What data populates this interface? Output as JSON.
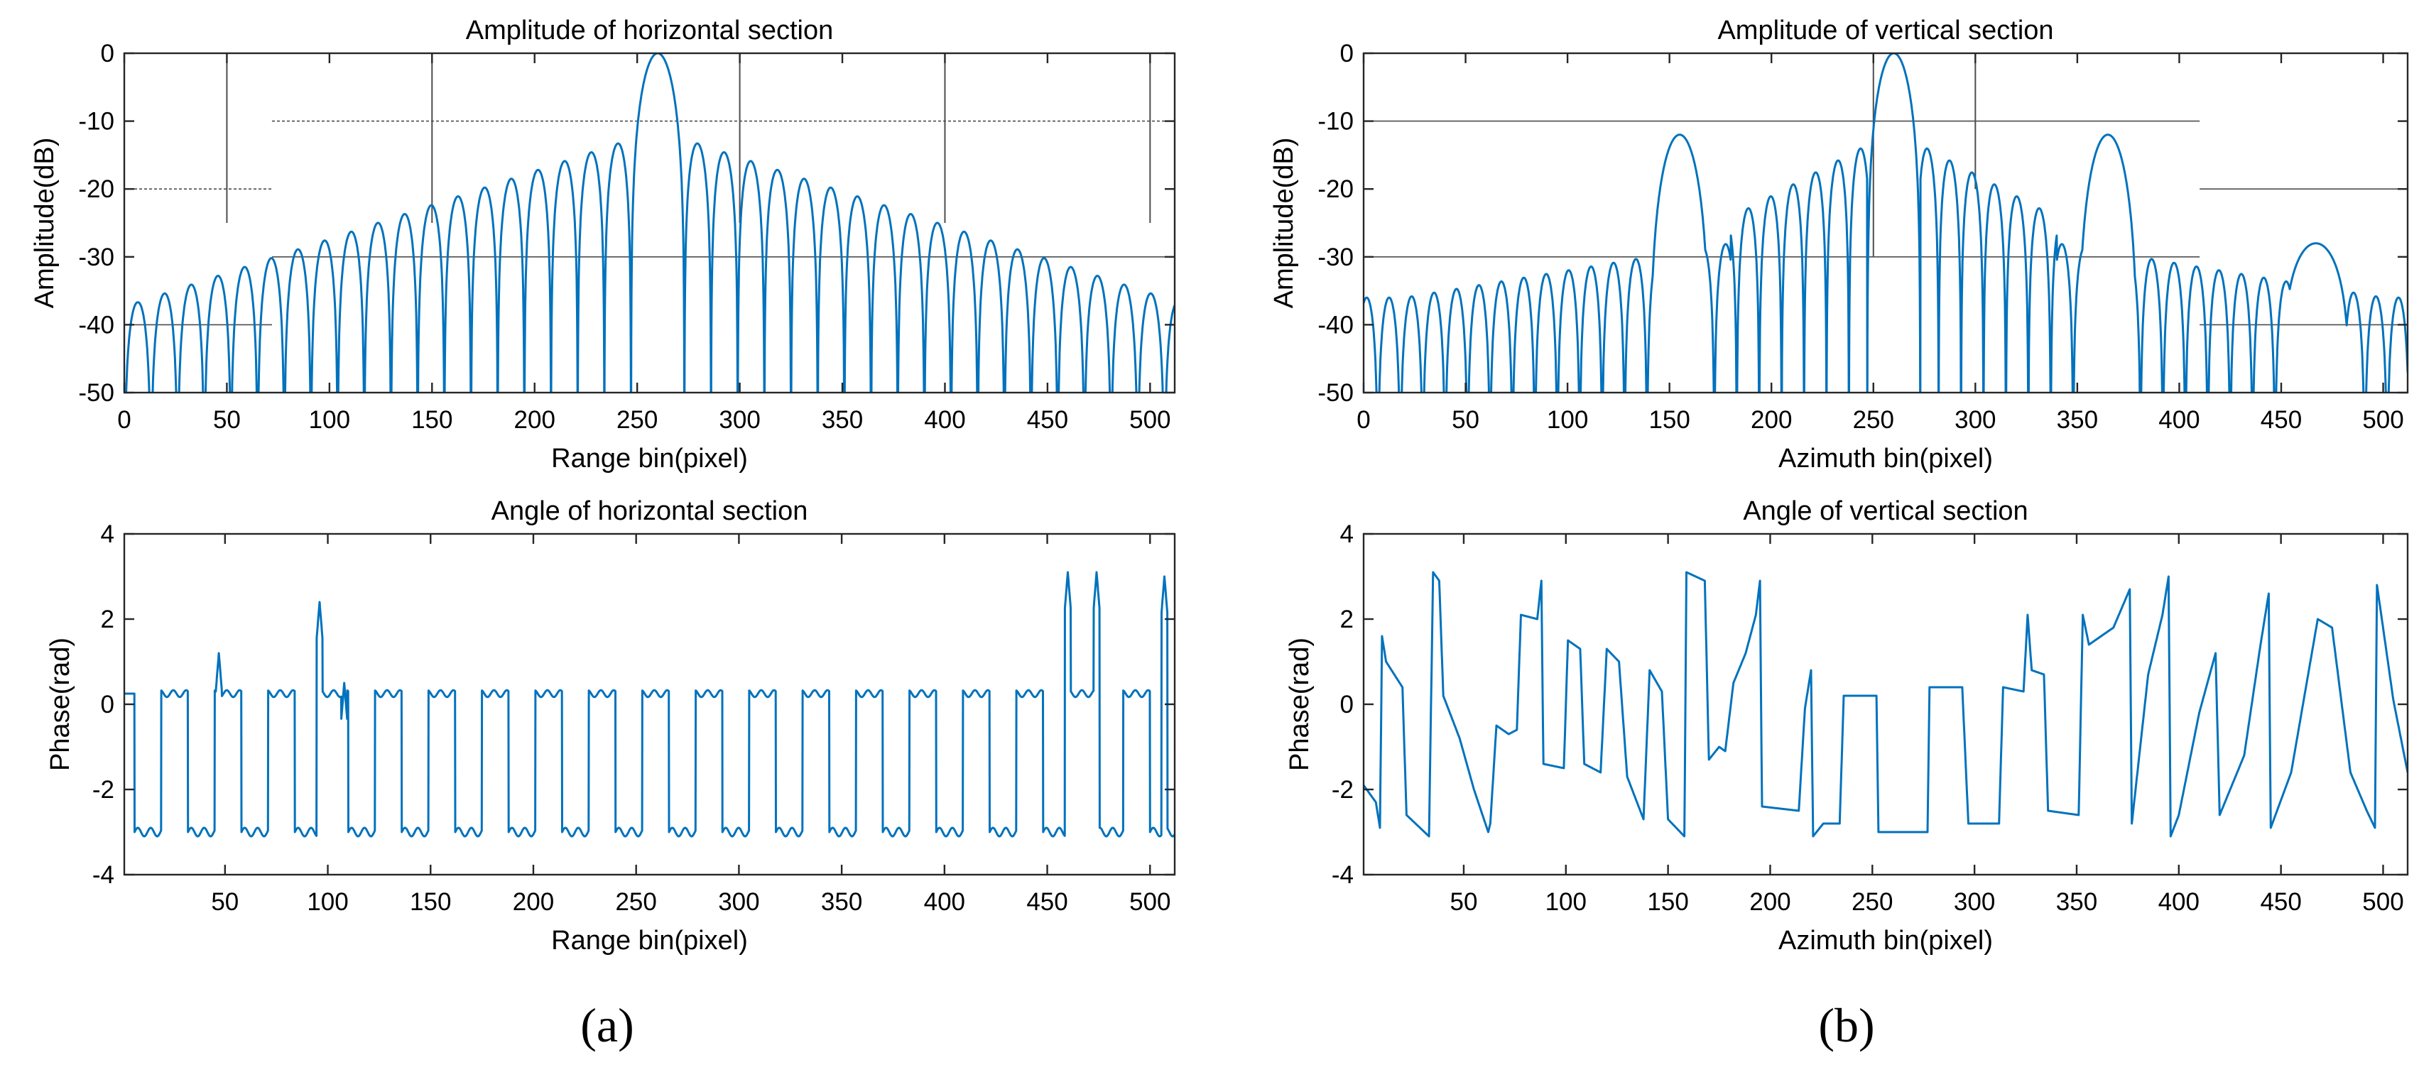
{
  "colors": {
    "line": "#0072BD",
    "axis": "#262626",
    "text": "#000000",
    "grid": "#4d4d4d"
  },
  "panel_labels": [
    "(a)",
    "(b)"
  ],
  "chart_data": [
    {
      "type": "line",
      "title": "Amplitude of horizontal section",
      "xlabel": "Range bin(pixel)",
      "ylabel": "Amplitude(dB)",
      "xlim": [
        0,
        512
      ],
      "ylim": [
        -50,
        0
      ],
      "xticks": [
        0,
        50,
        100,
        150,
        200,
        250,
        300,
        350,
        400,
        450,
        500
      ],
      "yticks": [
        0,
        -10,
        -20,
        -30,
        -40,
        -50
      ],
      "signal": "sinc_range",
      "series": [
        {
          "name": "amplitude",
          "peak_x": 260,
          "peak_y": 0,
          "first_sidelobe_db": -13.3,
          "sidelobe_period": 13,
          "edge_level_db": -36
        }
      ],
      "annotations": {
        "h_lines": [
          {
            "y": -20,
            "x": [
              0,
              72
            ]
          },
          {
            "y": -10,
            "x": [
              72,
              512
            ]
          },
          {
            "y": -30,
            "x": [
              72,
              512
            ]
          },
          {
            "y": -40,
            "x": [
              0,
              72
            ]
          }
        ],
        "v_lines": [
          {
            "x": 50,
            "y": [
              -25,
              0
            ]
          },
          {
            "x": 150,
            "y": [
              -25,
              0
            ]
          },
          {
            "x": 300,
            "y": [
              -25,
              0
            ]
          },
          {
            "x": 400,
            "y": [
              -25,
              0
            ]
          },
          {
            "x": 500,
            "y": [
              -25,
              0
            ]
          }
        ]
      }
    },
    {
      "type": "line",
      "title": "Amplitude of vertical section",
      "xlabel": "Azimuth bin(pixel)",
      "ylabel": "Amplitude(dB)",
      "xlim": [
        0,
        512
      ],
      "ylim": [
        -50,
        0
      ],
      "xticks": [
        0,
        50,
        100,
        150,
        200,
        250,
        300,
        350,
        400,
        450,
        500
      ],
      "yticks": [
        0,
        -10,
        -20,
        -30,
        -40,
        -50
      ],
      "signal": "sinc_azimuth",
      "series": [
        {
          "name": "amplitude",
          "peak_x": 260,
          "peak_y": 0,
          "secondary_peaks": [
            {
              "x": 155,
              "y": -12
            },
            {
              "x": 365,
              "y": -12
            }
          ],
          "tail_peak": {
            "x": 467,
            "y": -28
          }
        }
      ],
      "annotations": {
        "h_lines": [
          {
            "y": -10,
            "x": [
              0,
              410
            ]
          },
          {
            "y": -30,
            "x": [
              0,
              410
            ]
          },
          {
            "y": -20,
            "x": [
              410,
              512
            ]
          },
          {
            "y": -40,
            "x": [
              410,
              512
            ]
          }
        ],
        "v_lines": [
          {
            "x": 250,
            "y": [
              -30,
              0
            ]
          },
          {
            "x": 300,
            "y": [
              -20,
              0
            ]
          }
        ]
      }
    },
    {
      "type": "line",
      "title": "Angle of horizontal section",
      "xlabel": "Range bin(pixel)",
      "ylabel": "Phase(rad)",
      "xlim": [
        1,
        512
      ],
      "ylim": [
        -4,
        4
      ],
      "xticks": [
        50,
        100,
        150,
        200,
        250,
        300,
        350,
        400,
        450,
        500
      ],
      "yticks": [
        4,
        2,
        0,
        -2,
        -4
      ],
      "signal": "phase_range",
      "series": [
        {
          "name": "phase",
          "high_level": 0.25,
          "low_level": -3.0,
          "period": 26,
          "spikes": [
            {
              "x": 47,
              "y": 1.2
            },
            {
              "x": 96,
              "y": 2.4
            },
            {
              "x": 108,
              "y": 0.5
            },
            {
              "x": 460,
              "y": 3.1
            },
            {
              "x": 474,
              "y": 3.1
            },
            {
              "x": 507,
              "y": 3.0
            }
          ]
        }
      ]
    },
    {
      "type": "line",
      "title": "Angle of vertical section",
      "xlabel": "Azimuth bin(pixel)",
      "ylabel": "Phase(rad)",
      "xlim": [
        1,
        512
      ],
      "ylim": [
        -4,
        4
      ],
      "xticks": [
        50,
        100,
        150,
        200,
        250,
        300,
        350,
        400,
        450,
        500
      ],
      "yticks": [
        4,
        2,
        0,
        -2,
        -4
      ],
      "signal": "phase_azimuth",
      "series": [
        {
          "name": "phase",
          "breakpoints": [
            [
              1,
              -1.9
            ],
            [
              7,
              -2.3
            ],
            [
              9,
              -2.9
            ],
            [
              10,
              1.6
            ],
            [
              12,
              1.0
            ],
            [
              20,
              0.4
            ],
            [
              22,
              -2.6
            ],
            [
              33,
              -3.1
            ],
            [
              35,
              3.1
            ],
            [
              38,
              2.9
            ],
            [
              40,
              0.2
            ],
            [
              48,
              -0.8
            ],
            [
              55,
              -2.0
            ],
            [
              62,
              -3.0
            ],
            [
              63,
              -2.8
            ],
            [
              66,
              -0.5
            ],
            [
              72,
              -0.7
            ],
            [
              76,
              -0.6
            ],
            [
              78,
              2.1
            ],
            [
              86,
              2.0
            ],
            [
              88,
              2.9
            ],
            [
              89,
              -1.4
            ],
            [
              99,
              -1.5
            ],
            [
              101,
              1.5
            ],
            [
              107,
              1.3
            ],
            [
              109,
              -1.4
            ],
            [
              117,
              -1.6
            ],
            [
              120,
              1.3
            ],
            [
              126,
              1.0
            ],
            [
              130,
              -1.7
            ],
            [
              138,
              -2.7
            ],
            [
              141,
              0.8
            ],
            [
              147,
              0.3
            ],
            [
              150,
              -2.7
            ],
            [
              158,
              -3.1
            ],
            [
              159,
              3.1
            ],
            [
              168,
              2.9
            ],
            [
              170,
              -1.3
            ],
            [
              175,
              -1.0
            ],
            [
              178,
              -1.1
            ],
            [
              182,
              0.5
            ],
            [
              188,
              1.2
            ],
            [
              193,
              2.1
            ],
            [
              195,
              2.9
            ],
            [
              196,
              -2.4
            ],
            [
              214,
              -2.5
            ],
            [
              217,
              -0.1
            ],
            [
              220,
              0.8
            ],
            [
              221,
              -3.1
            ],
            [
              226,
              -2.8
            ],
            [
              234,
              -2.8
            ],
            [
              236,
              0.2
            ],
            [
              252,
              0.2
            ],
            [
              253,
              -3.0
            ],
            [
              277,
              -3.0
            ],
            [
              278,
              0.4
            ],
            [
              294,
              0.4
            ],
            [
              297,
              -2.8
            ],
            [
              312,
              -2.8
            ],
            [
              314,
              0.4
            ],
            [
              324,
              0.3
            ],
            [
              326,
              2.1
            ],
            [
              328,
              0.8
            ],
            [
              334,
              0.7
            ],
            [
              336,
              -2.5
            ],
            [
              351,
              -2.6
            ],
            [
              353,
              2.1
            ],
            [
              356,
              1.4
            ],
            [
              368,
              1.8
            ],
            [
              376,
              2.7
            ],
            [
              377,
              -2.8
            ],
            [
              385,
              0.7
            ],
            [
              392,
              2.1
            ],
            [
              395,
              3.0
            ],
            [
              396,
              -3.1
            ],
            [
              400,
              -2.6
            ],
            [
              410,
              -0.2
            ],
            [
              418,
              1.2
            ],
            [
              420,
              -2.6
            ],
            [
              432,
              -1.2
            ],
            [
              440,
              1.4
            ],
            [
              444,
              2.6
            ],
            [
              445,
              -2.9
            ],
            [
              455,
              -1.6
            ],
            [
              468,
              2.0
            ],
            [
              475,
              1.8
            ],
            [
              484,
              -1.6
            ],
            [
              492,
              -2.5
            ],
            [
              496,
              -2.9
            ],
            [
              497,
              2.8
            ],
            [
              505,
              0.1
            ],
            [
              512,
              -1.6
            ]
          ]
        }
      ]
    }
  ]
}
